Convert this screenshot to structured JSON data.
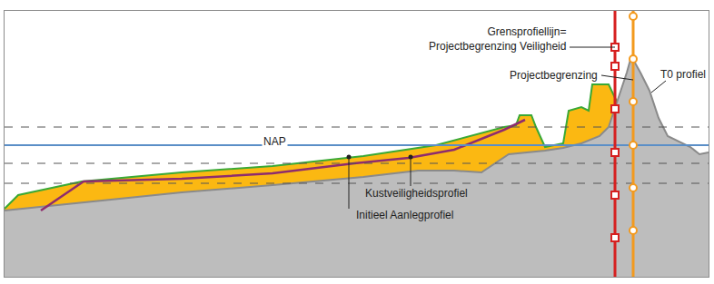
{
  "chart_data": {
    "type": "area",
    "xlim": [
      0,
      775
    ],
    "ylim": [
      -145,
      148
    ],
    "tick_labels": false,
    "grid": false,
    "series": [
      {
        "name": "Initieel Aanlegprofiel",
        "type": "area",
        "color": "#3aa935",
        "x": [
          0,
          15,
          85,
          195,
          295,
          395,
          475,
          550,
          563,
          567,
          580,
          585,
          595,
          615,
          621,
          635,
          643,
          647,
          665,
          674
        ],
        "values": [
          -70,
          -55,
          -40,
          -30,
          -23,
          -12,
          0,
          20,
          22,
          33,
          33,
          20,
          -2,
          2,
          38,
          42,
          38,
          67,
          67,
          48
        ],
        "label": {
          "x": 385,
          "y": -77,
          "pointer": {
            "x": [
              379,
              379
            ],
            "y": [
              -70,
              -13
            ],
            "marker": "circle"
          }
        }
      },
      {
        "name": "T0 profiel",
        "type": "area",
        "color": "#8a8a8a",
        "x": [
          0,
          95,
          195,
          295,
          395,
          455,
          495,
          525,
          540,
          555,
          595,
          615,
          635,
          655,
          665,
          675,
          685,
          690,
          700,
          710,
          720,
          730,
          740,
          755,
          765,
          775
        ],
        "values": [
          -72,
          -62,
          -52,
          -44,
          -35,
          -28,
          -28,
          -30,
          -20,
          -10,
          -6,
          -3,
          2,
          10,
          20,
          50,
          80,
          98,
          80,
          60,
          30,
          10,
          5,
          -2,
          -10,
          -8
        ],
        "label": {
          "x": 720,
          "y": 78,
          "pointer": {
            "x": [
              728,
              712
            ],
            "y": [
              71,
              58
            ]
          }
        }
      },
      {
        "name": "Kustveiligheidsprofiel",
        "type": "line",
        "color": "#8e2c6e",
        "x": [
          40,
          87,
          195,
          295,
          385,
          445,
          495,
          550,
          573
        ],
        "values": [
          -72,
          -40,
          -37,
          -31,
          -20,
          -14,
          -5,
          17,
          28
        ],
        "label": {
          "x": 395,
          "y": -53,
          "pointer": {
            "x": [
              447,
              447
            ],
            "y": [
              -45,
              -13
            ],
            "marker": "circle"
          }
        }
      },
      {
        "type": "hline",
        "color": "#555555",
        "line_style": "dashed",
        "values": [
          20,
          -20,
          -42
        ]
      },
      {
        "name": "NAP",
        "type": "hline",
        "color": "#5b8fc7",
        "values": [
          0
        ],
        "label": {
          "x": 283,
          "y": 4
        }
      }
    ],
    "boundaries": [
      {
        "name": [
          "Grensprofiellijn=",
          "Projectbegrenzing Veiligheid"
        ],
        "x": 672,
        "color": "#d62020",
        "marker": "square",
        "marks": [
          108,
          87,
          40,
          -8,
          -55,
          -102
        ],
        "label": {
          "x": 620,
          "y": 117,
          "pointer": {
            "x": [
              622,
              672
            ],
            "y": [
              108,
              108
            ]
          }
        }
      },
      {
        "name": [
          "Projectbegrenzing"
        ],
        "x": 692,
        "color": "#f39a1e",
        "marker": "circle",
        "marks": [
          142,
          95,
          48,
          0,
          -47,
          -94
        ],
        "label": {
          "x": 655,
          "y": 77,
          "pointer": {
            "x": [
              657,
              692
            ],
            "y": [
              77,
              72
            ]
          }
        }
      }
    ]
  }
}
